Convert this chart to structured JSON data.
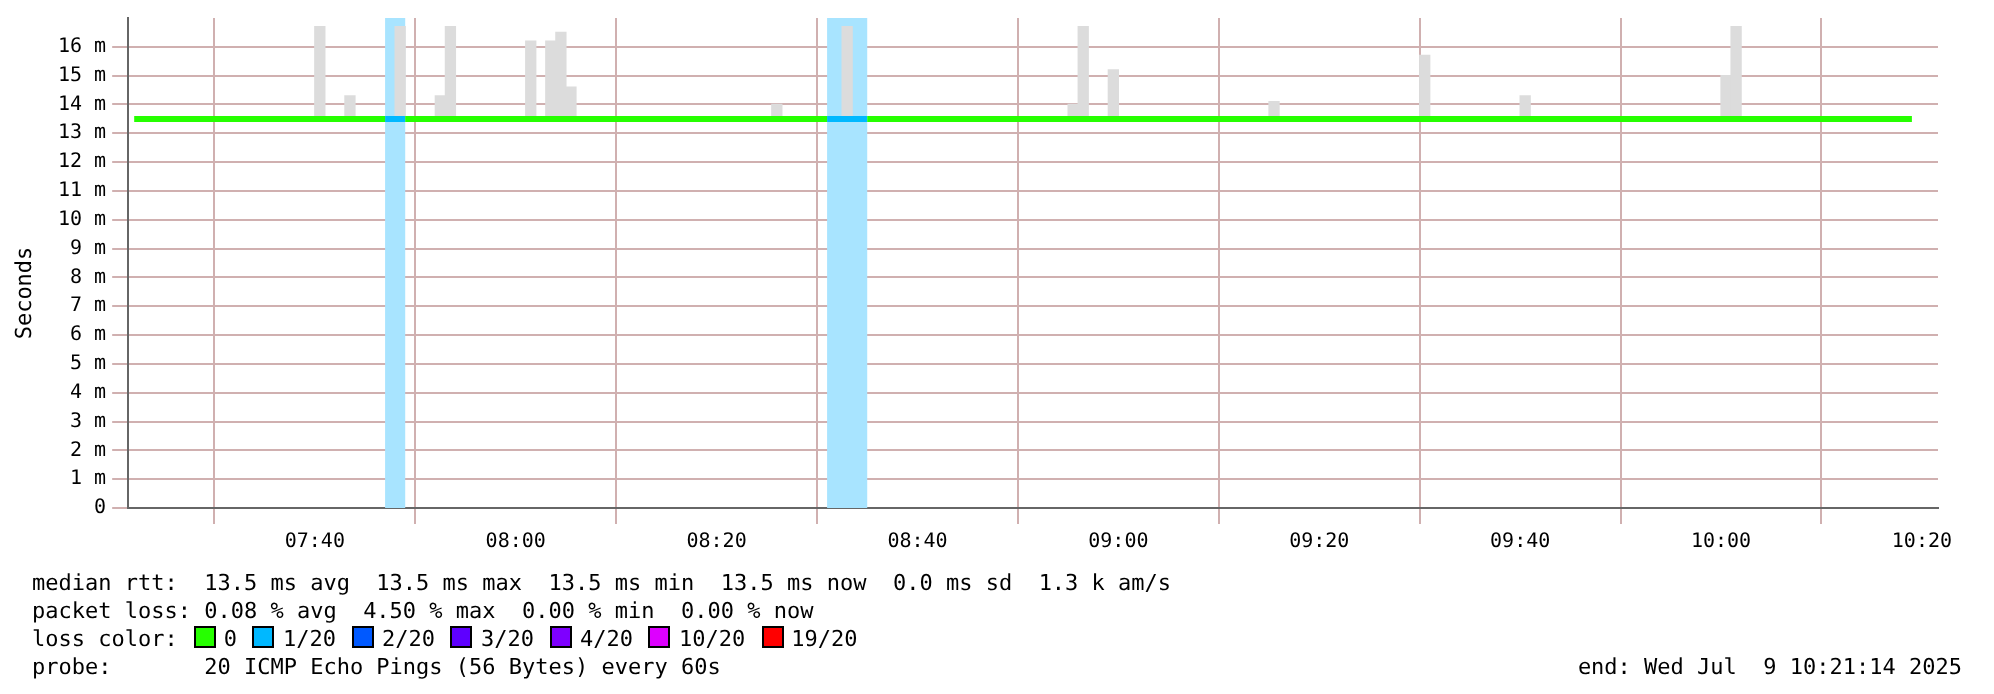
{
  "chart_data": {
    "type": "line",
    "ylabel": "Seconds",
    "legend_title": "loss color:",
    "legend": "bottom",
    "grid": true,
    "line_style": "solid",
    "marker": "none",
    "xlim": [
      7.357,
      10.36
    ],
    "xticks": [
      {
        "value": 7.6667,
        "label": "07:40"
      },
      {
        "value": 8,
        "label": "08:00"
      },
      {
        "value": 8.3333,
        "label": "08:20"
      },
      {
        "value": 8.6667,
        "label": "08:40"
      },
      {
        "value": 9,
        "label": "09:00"
      },
      {
        "value": 9.3333,
        "label": "09:20"
      },
      {
        "value": 9.6667,
        "label": "09:40"
      },
      {
        "value": 10,
        "label": "10:00"
      },
      {
        "value": 10.3333,
        "label": "10:20"
      }
    ],
    "ylim": [
      0,
      17
    ],
    "yticks": [
      0,
      {
        "value": 1,
        "label": "1 m"
      },
      {
        "value": 2,
        "label": "2 m"
      },
      {
        "value": 3,
        "label": "3 m"
      },
      {
        "value": 4,
        "label": "4 m"
      },
      {
        "value": 5,
        "label": "5 m"
      },
      {
        "value": 6,
        "label": "6 m"
      },
      {
        "value": 7,
        "label": "7 m"
      },
      {
        "value": 8,
        "label": "8 m"
      },
      {
        "value": 9,
        "label": "9 m"
      },
      {
        "value": 10,
        "label": "10 m"
      },
      {
        "value": 11,
        "label": "11 m"
      },
      {
        "value": 12,
        "label": "12 m"
      },
      {
        "value": 13,
        "label": "13 m"
      },
      {
        "value": 14,
        "label": "14 m"
      },
      {
        "value": 15,
        "label": "15 m"
      },
      {
        "value": 16,
        "label": "16 m"
      }
    ],
    "bands": [
      {
        "axis": "x",
        "from": 7.7833,
        "to": 7.8167,
        "color": "#a8e4ff"
      },
      {
        "axis": "x",
        "from": 8.5167,
        "to": 8.5833,
        "color": "#a8e4ff"
      }
    ],
    "series": [
      {
        "type": "bar",
        "color": "#dcdcdc",
        "x": [
          7.675,
          7.725,
          7.8083,
          7.875,
          7.8917,
          8.025,
          8.0583,
          8.075,
          8.0917,
          8.4333,
          8.55,
          8.925,
          8.9417,
          8.9917,
          9.2583,
          9.5083,
          9.675,
          10.0083,
          10.025
        ],
        "base": [
          13.5,
          13.5,
          13.5,
          13.5,
          13.5,
          13.5,
          13.5,
          13.5,
          13.5,
          13.5,
          13.5,
          13.5,
          13.5,
          13.5,
          13.5,
          13.5,
          13.5,
          13.5,
          13.5
        ],
        "values": [
          3.2,
          0.8,
          3.2,
          0.8,
          3.2,
          2.7,
          2.7,
          3.0,
          1.1,
          0.5,
          3.2,
          0.5,
          3.2,
          1.7,
          0.6,
          2.2,
          0.8,
          1.5,
          3.2
        ]
      },
      {
        "name": "0",
        "color": "#26ff00",
        "x": [
          7.367,
          7.5,
          7.6667,
          7.7833,
          7.8,
          7.8167,
          8.0,
          8.25,
          8.5167,
          8.55,
          8.5833,
          8.75,
          9.0,
          9.25,
          9.5,
          9.75,
          10.0,
          10.3167
        ],
        "values": [
          13.5,
          13.5,
          13.5,
          13.5,
          null,
          13.5,
          13.5,
          13.5,
          13.5,
          null,
          13.5,
          13.5,
          13.5,
          13.5,
          13.5,
          13.5,
          13.5,
          13.5
        ]
      },
      {
        "name": "1/20",
        "color": "#00b8ff",
        "x": [
          7.7833,
          7.8167,
          8.2,
          8.5167,
          8.5833
        ],
        "values": [
          13.5,
          13.5,
          null,
          13.5,
          13.5
        ]
      },
      {
        "name": "2/20",
        "color": "#0059ff"
      },
      {
        "name": "3/20",
        "color": "#5e00ff"
      },
      {
        "name": "4/20",
        "color": "#7e00ff"
      },
      {
        "name": "10/20",
        "color": "#dd00ff"
      },
      {
        "name": "19/20",
        "color": "#ff0000"
      }
    ],
    "annotations": [
      "median rtt:  13.5 ms avg  13.5 ms max  13.5 ms min  13.5 ms now  0.0 ms sd  1.3 k am/s",
      "packet loss: 0.08 % avg  4.50 % max  0.00 % min  0.00 % now",
      "probe:       20 ICMP Echo Pings (56 Bytes) every 60s",
      "end: Wed Jul  9 10:21:14 2025"
    ]
  }
}
